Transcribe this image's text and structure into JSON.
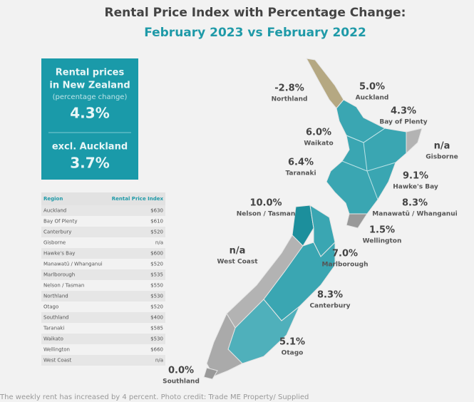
{
  "header": {
    "title": "Rental Price Index with Percentage Change:",
    "subtitle": "February 2023 vs February 2022"
  },
  "summary": {
    "label1": "Rental prices",
    "label2": "in New Zealand",
    "note": "(percentage change)",
    "value": "4.3%",
    "label3": "excl. Auckland",
    "value2": "3.7%"
  },
  "table": {
    "headers": [
      "Region",
      "Rental Price Index"
    ],
    "rows": [
      [
        "Auckland",
        "$630"
      ],
      [
        "Bay Of Plenty",
        "$610"
      ],
      [
        "Canterbury",
        "$520"
      ],
      [
        "Gisborne",
        "n/a"
      ],
      [
        "Hawke's Bay",
        "$600"
      ],
      [
        "Manawatū / Whanganui",
        "$520"
      ],
      [
        "Marlborough",
        "$535"
      ],
      [
        "Nelson / Tasman",
        "$550"
      ],
      [
        "Northland",
        "$530"
      ],
      [
        "Otago",
        "$520"
      ],
      [
        "Southland",
        "$400"
      ],
      [
        "Taranaki",
        "$585"
      ],
      [
        "Waikato",
        "$530"
      ],
      [
        "Wellington",
        "$660"
      ],
      [
        "West Coast",
        "n/a"
      ]
    ]
  },
  "map_labels": [
    {
      "change": "-2.8%",
      "region": "Northland"
    },
    {
      "change": "5.0%",
      "region": "Auckland"
    },
    {
      "change": "4.3%",
      "region": "Bay of Plenty"
    },
    {
      "change": "6.0%",
      "region": "Waikato"
    },
    {
      "change": "n/a",
      "region": "Gisborne"
    },
    {
      "change": "6.4%",
      "region": "Taranaki"
    },
    {
      "change": "9.1%",
      "region": "Hawke's Bay"
    },
    {
      "change": "10.0%",
      "region": "Nelson / Tasman"
    },
    {
      "change": "8.3%",
      "region": "Manawatū / Whanganui"
    },
    {
      "change": "1.5%",
      "region": "Wellington"
    },
    {
      "change": "n/a",
      "region": "West Coast"
    },
    {
      "change": "7.0%",
      "region": "Marlborough"
    },
    {
      "change": "8.3%",
      "region": "Canterbury"
    },
    {
      "change": "5.1%",
      "region": "Otago"
    },
    {
      "change": "0.0%",
      "region": "Southland"
    }
  ],
  "caption": "The weekly rent has increased by 4 percent. Photo credit: Trade ME Property/ Supplied"
}
